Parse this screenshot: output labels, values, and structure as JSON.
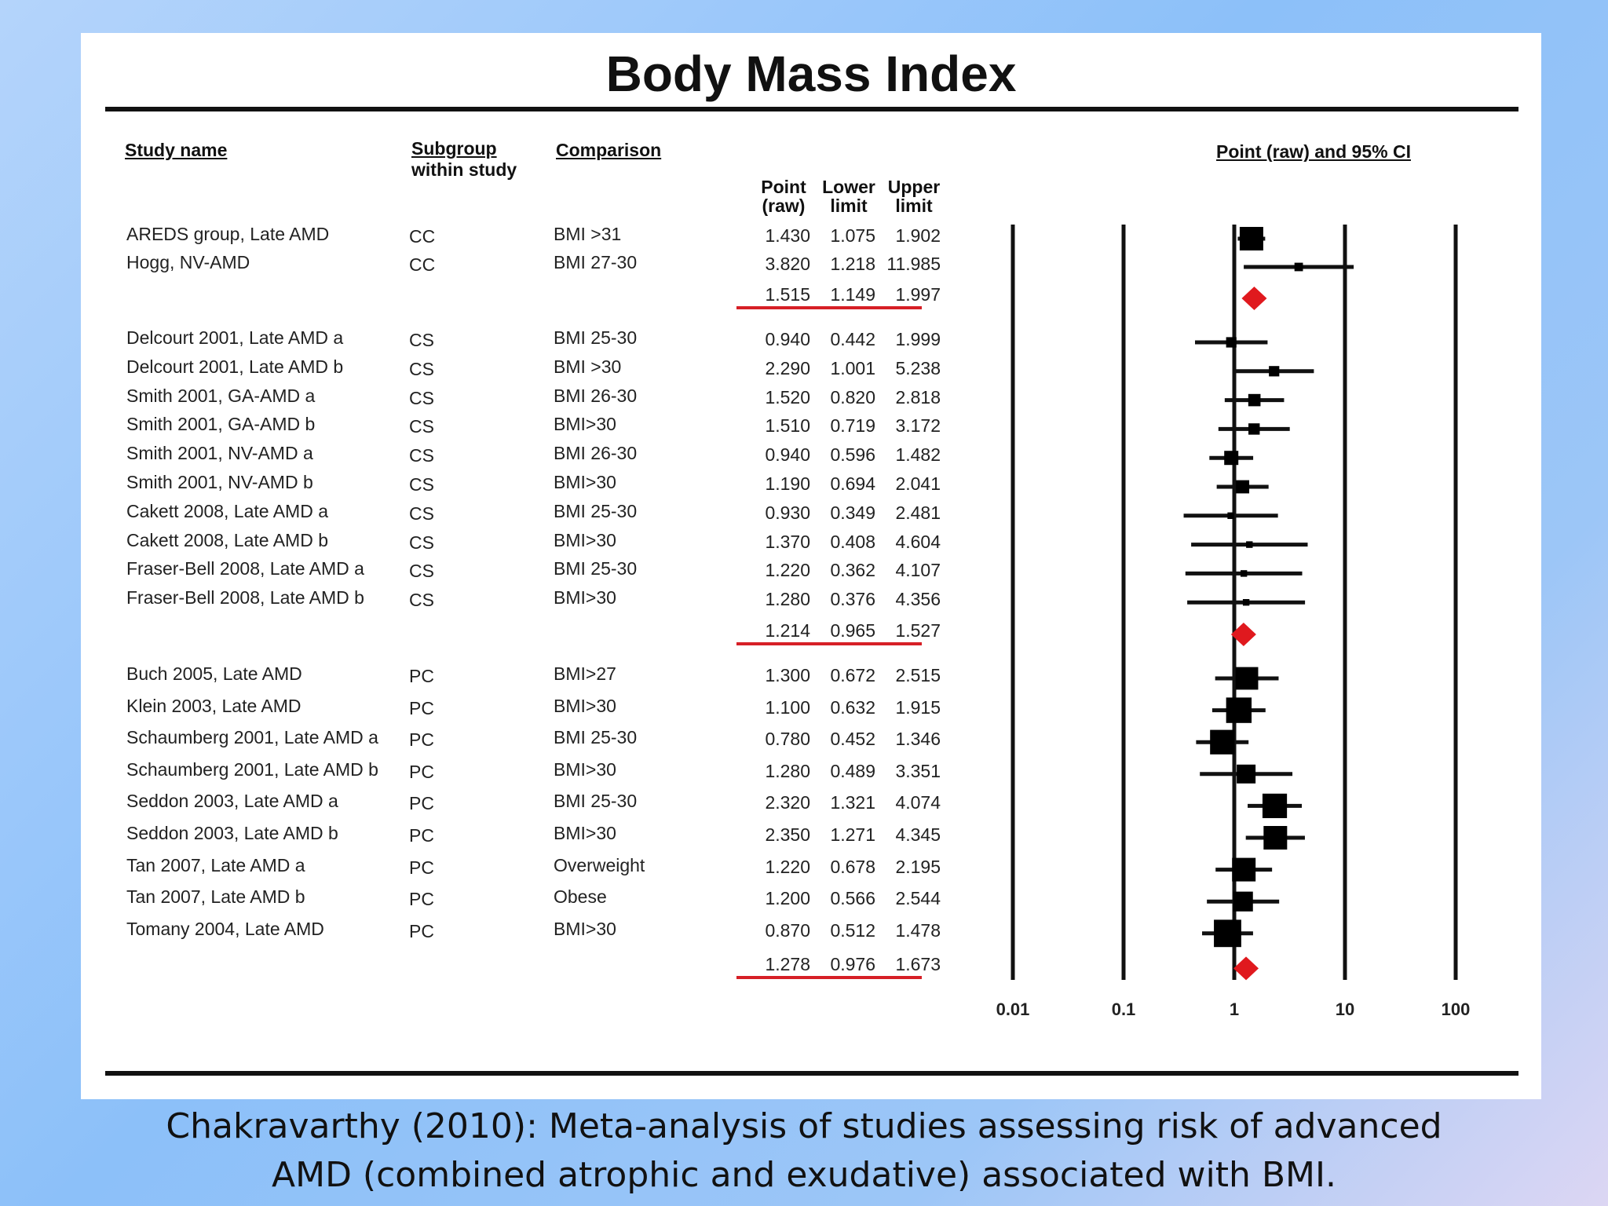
{
  "title": "Body Mass Index",
  "headers": {
    "study": "Study name",
    "subgroup_1": "Subgroup",
    "subgroup_2": "within study",
    "comparison": "Comparison",
    "point_1": "Point",
    "point_2": "(raw)",
    "lower_1": "Lower",
    "lower_2": "limit",
    "upper_1": "Upper",
    "upper_2": "limit",
    "plot": "Point (raw) and 95% CI"
  },
  "axis_ticks": [
    "0.01",
    "0.1",
    "1",
    "10",
    "100"
  ],
  "caption_line1": "Chakravarthy (2010): Meta-analysis of studies assessing risk of advanced",
  "caption_line2": "AMD (combined atrophic and exudative) associated with BMI.",
  "chart_data": {
    "type": "forest",
    "title": "Body Mass Index",
    "xscale": "log",
    "xlim": [
      0.01,
      100
    ],
    "xticks": [
      0.01,
      0.1,
      1,
      10,
      100
    ],
    "marker_color": "#000000",
    "summary_color": "#e0191e",
    "groups": [
      {
        "rows": [
          {
            "study": "AREDS group, Late AMD",
            "subgroup": "CC",
            "comparison": "BMI >31",
            "point": "1.430",
            "lower": "1.075",
            "upper": "1.902",
            "weight": 1.0
          },
          {
            "study": "Hogg, NV-AMD",
            "subgroup": "CC",
            "comparison": "BMI 27-30",
            "point": "3.820",
            "lower": "1.218",
            "upper": "11.985",
            "weight": 0.2
          }
        ],
        "summary": {
          "point": "1.515",
          "lower": "1.149",
          "upper": "1.997"
        }
      },
      {
        "rows": [
          {
            "study": "Delcourt 2001, Late AMD a",
            "subgroup": "CS",
            "comparison": "BMI 25-30",
            "point": "0.940",
            "lower": "0.442",
            "upper": "1.999",
            "weight": 0.3
          },
          {
            "study": "Delcourt 2001, Late AMD b",
            "subgroup": "CS",
            "comparison": "BMI >30",
            "point": "2.290",
            "lower": "1.001",
            "upper": "5.238",
            "weight": 0.3
          },
          {
            "study": "Smith 2001, GA-AMD a",
            "subgroup": "CS",
            "comparison": "BMI 26-30",
            "point": "1.520",
            "lower": "0.820",
            "upper": "2.818",
            "weight": 0.4
          },
          {
            "study": "Smith 2001, GA-AMD b",
            "subgroup": "CS",
            "comparison": "BMI>30",
            "point": "1.510",
            "lower": "0.719",
            "upper": "3.172",
            "weight": 0.35
          },
          {
            "study": "Smith 2001, NV-AMD a",
            "subgroup": "CS",
            "comparison": "BMI 26-30",
            "point": "0.940",
            "lower": "0.596",
            "upper": "1.482",
            "weight": 0.5
          },
          {
            "study": "Smith 2001, NV-AMD b",
            "subgroup": "CS",
            "comparison": "BMI>30",
            "point": "1.190",
            "lower": "0.694",
            "upper": "2.041",
            "weight": 0.45
          },
          {
            "study": "Cakett 2008, Late AMD a",
            "subgroup": "CS",
            "comparison": "BMI 25-30",
            "point": "0.930",
            "lower": "0.349",
            "upper": "2.481",
            "weight": 0.1
          },
          {
            "study": "Cakett 2008, Late AMD b",
            "subgroup": "CS",
            "comparison": "BMI>30",
            "point": "1.370",
            "lower": "0.408",
            "upper": "4.604",
            "weight": 0.1
          },
          {
            "study": "Fraser-Bell 2008, Late AMD a",
            "subgroup": "CS",
            "comparison": "BMI 25-30",
            "point": "1.220",
            "lower": "0.362",
            "upper": "4.107",
            "weight": 0.1
          },
          {
            "study": "Fraser-Bell 2008, Late AMD b",
            "subgroup": "CS",
            "comparison": "BMI>30",
            "point": "1.280",
            "lower": "0.376",
            "upper": "4.356",
            "weight": 0.1
          }
        ],
        "summary": {
          "point": "1.214",
          "lower": "0.965",
          "upper": "1.527"
        }
      },
      {
        "rows": [
          {
            "study": "Buch 2005, Late AMD",
            "subgroup": "PC",
            "comparison": "BMI>27",
            "point": "1.300",
            "lower": "0.672",
            "upper": "2.515",
            "weight": 0.95
          },
          {
            "study": "Klein 2003, Late AMD",
            "subgroup": "PC",
            "comparison": "BMI>30",
            "point": "1.100",
            "lower": "0.632",
            "upper": "1.915",
            "weight": 1.1
          },
          {
            "study": "Schaumberg 2001, Late AMD a",
            "subgroup": "PC",
            "comparison": "BMI 25-30",
            "point": "0.780",
            "lower": "0.452",
            "upper": "1.346",
            "weight": 1.05
          },
          {
            "study": "Schaumberg 2001, Late AMD b",
            "subgroup": "PC",
            "comparison": "BMI>30",
            "point": "1.280",
            "lower": "0.489",
            "upper": "3.351",
            "weight": 0.75
          },
          {
            "study": "Seddon 2003, Late AMD a",
            "subgroup": "PC",
            "comparison": "BMI 25-30",
            "point": "2.320",
            "lower": "1.321",
            "upper": "4.074",
            "weight": 1.05
          },
          {
            "study": "Seddon 2003, Late AMD b",
            "subgroup": "PC",
            "comparison": "BMI>30",
            "point": "2.350",
            "lower": "1.271",
            "upper": "4.345",
            "weight": 1.0
          },
          {
            "study": "Tan 2007, Late AMD a",
            "subgroup": "PC",
            "comparison": "Overweight",
            "point": "1.220",
            "lower": "0.678",
            "upper": "2.195",
            "weight": 1.0
          },
          {
            "study": "Tan 2007, Late AMD b",
            "subgroup": "PC",
            "comparison": "Obese",
            "point": "1.200",
            "lower": "0.566",
            "upper": "2.544",
            "weight": 0.8
          },
          {
            "study": "Tomany 2004, Late AMD",
            "subgroup": "PC",
            "comparison": "BMI>30",
            "point": "0.870",
            "lower": "0.512",
            "upper": "1.478",
            "weight": 1.2
          }
        ],
        "summary": {
          "point": "1.278",
          "lower": "0.976",
          "upper": "1.673"
        }
      }
    ]
  }
}
